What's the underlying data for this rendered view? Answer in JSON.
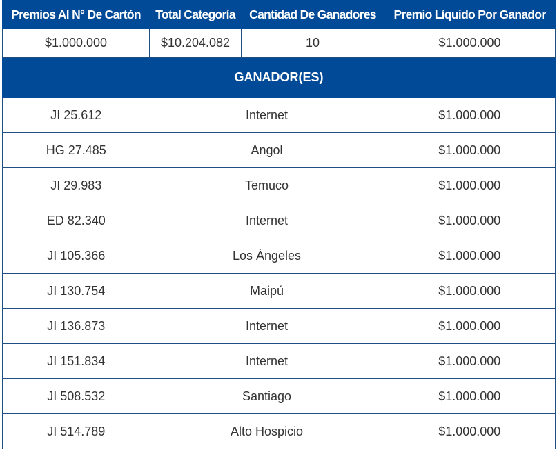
{
  "headers": [
    "Premios Al N° De Cartón",
    "Total Categoría",
    "Cantidad De Ganadores",
    "Premio Líquido Por Ganador"
  ],
  "summary": {
    "premio_carton": "$1.000.000",
    "total_categoria": "$10.204.082",
    "cantidad_ganadores": "10",
    "premio_liquido": "$1.000.000"
  },
  "winners_section_title": "GANADOR(ES)",
  "winners": [
    {
      "carton": "JI 25.612",
      "ubicacion": "Internet",
      "premio": "$1.000.000"
    },
    {
      "carton": "HG 27.485",
      "ubicacion": "Angol",
      "premio": "$1.000.000"
    },
    {
      "carton": "JI 29.983",
      "ubicacion": "Temuco",
      "premio": "$1.000.000"
    },
    {
      "carton": "ED 82.340",
      "ubicacion": "Internet",
      "premio": "$1.000.000"
    },
    {
      "carton": "JI 105.366",
      "ubicacion": "Los Ángeles",
      "premio": "$1.000.000"
    },
    {
      "carton": "JI 130.754",
      "ubicacion": "Maipú",
      "premio": "$1.000.000"
    },
    {
      "carton": "JI 136.873",
      "ubicacion": "Internet",
      "premio": "$1.000.000"
    },
    {
      "carton": "JI 151.834",
      "ubicacion": "Internet",
      "premio": "$1.000.000"
    },
    {
      "carton": "JI 508.532",
      "ubicacion": "Santiago",
      "premio": "$1.000.000"
    },
    {
      "carton": "JI 514.789",
      "ubicacion": "Alto Hospicio",
      "premio": "$1.000.000"
    }
  ]
}
